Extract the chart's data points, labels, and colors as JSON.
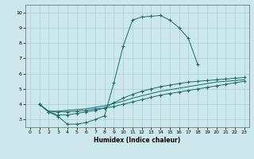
{
  "xlabel": "Humidex (Indice chaleur)",
  "bg_color": "#cce8ec",
  "grid_color": "#aacdd4",
  "line_color": "#1a6b6b",
  "xlim": [
    -0.5,
    23.5
  ],
  "ylim": [
    2.5,
    10.5
  ],
  "xticks": [
    0,
    1,
    2,
    3,
    4,
    5,
    6,
    7,
    8,
    9,
    10,
    11,
    12,
    13,
    14,
    15,
    16,
    17,
    18,
    19,
    20,
    21,
    22,
    23
  ],
  "yticks": [
    3,
    4,
    5,
    6,
    7,
    8,
    9,
    10
  ],
  "curve_main_x": [
    1,
    2,
    3,
    4,
    5,
    6,
    7,
    8,
    9,
    10,
    11,
    12,
    13,
    14,
    15,
    16,
    17,
    18
  ],
  "curve_main_y": [
    4.0,
    3.5,
    3.2,
    2.7,
    2.7,
    2.8,
    3.0,
    3.25,
    5.4,
    7.8,
    9.5,
    9.7,
    9.75,
    9.8,
    9.5,
    9.0,
    8.3,
    6.6
  ],
  "curve_a_x": [
    1,
    2,
    3,
    4,
    5,
    6,
    7,
    8,
    9,
    10,
    11,
    12,
    13,
    14,
    15,
    16,
    17,
    18,
    19,
    20,
    21,
    22,
    23
  ],
  "curve_a_y": [
    4.0,
    3.5,
    3.5,
    3.5,
    3.55,
    3.6,
    3.7,
    3.75,
    3.85,
    4.0,
    4.15,
    4.3,
    4.45,
    4.6,
    4.7,
    4.8,
    4.9,
    5.0,
    5.1,
    5.2,
    5.3,
    5.4,
    5.5
  ],
  "curve_b_x": [
    1,
    2,
    3,
    4,
    5,
    6,
    7,
    8,
    9,
    10,
    11,
    12,
    13,
    14,
    15,
    16,
    17,
    18,
    19,
    20,
    21,
    22,
    23
  ],
  "curve_b_y": [
    4.0,
    3.55,
    3.55,
    3.6,
    3.65,
    3.7,
    3.8,
    3.9,
    4.05,
    4.2,
    4.4,
    4.55,
    4.7,
    4.85,
    4.95,
    5.05,
    5.15,
    5.25,
    5.35,
    5.45,
    5.5,
    5.55,
    5.6
  ],
  "curve_c_x": [
    1,
    2,
    3,
    4,
    5,
    6,
    7,
    8,
    9,
    10,
    11,
    12,
    13,
    14,
    15,
    16,
    17,
    18,
    19,
    20,
    21,
    22,
    23
  ],
  "curve_c_y": [
    4.0,
    3.5,
    3.3,
    3.3,
    3.4,
    3.5,
    3.6,
    3.75,
    4.1,
    4.4,
    4.65,
    4.85,
    5.0,
    5.15,
    5.25,
    5.35,
    5.45,
    5.5,
    5.55,
    5.6,
    5.65,
    5.7,
    5.75
  ]
}
